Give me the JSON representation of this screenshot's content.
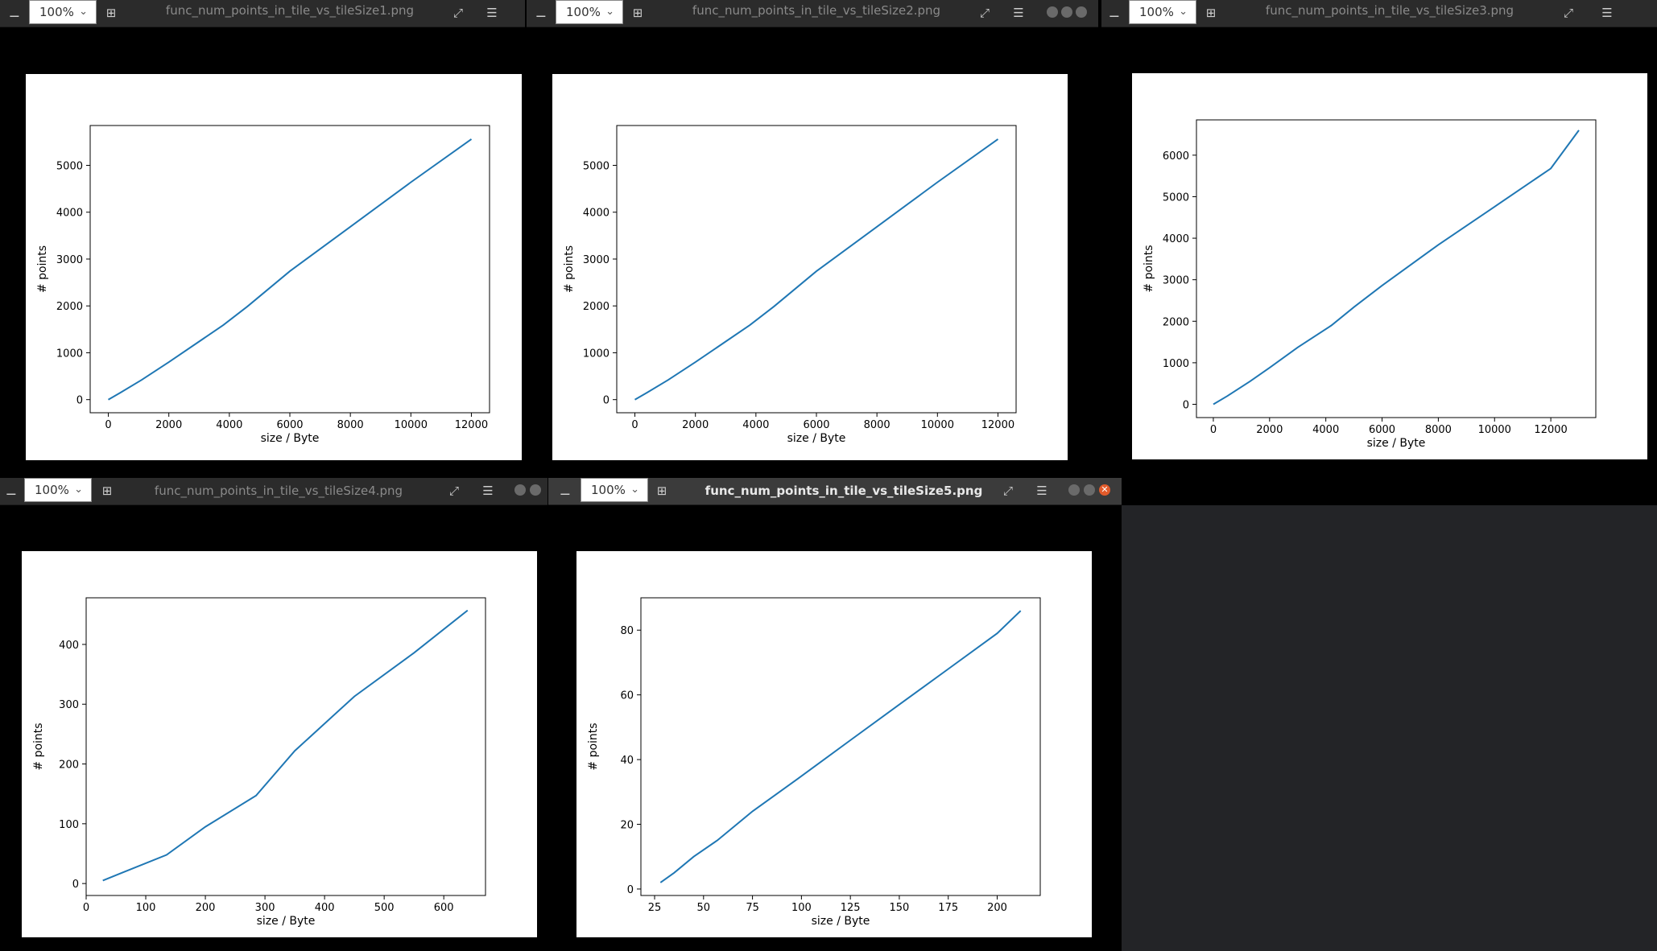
{
  "zoom_level": "100%",
  "xlabel": "size / Byte",
  "ylabel": "# points",
  "icons": {
    "minus": "minus-icon",
    "plus": "plus-icon",
    "expand": "expand-icon",
    "menu": "hamburger-menu-icon",
    "chevron": "chevron-down-icon",
    "close": "close-icon"
  },
  "colors": {
    "line": "#1f77b4",
    "titlebar": "#2b2b2b",
    "titlebar_active": "#3b3b3b"
  },
  "windows": [
    {
      "title": "func_num_points_in_tile_vs_tileSize1.png",
      "chart_data": {
        "type": "line",
        "xlabel": "size / Byte",
        "ylabel": "# points",
        "xlim": [
          -600,
          12600
        ],
        "ylim": [
          -280,
          5850
        ],
        "xticks": [
          0,
          2000,
          4000,
          6000,
          8000,
          10000,
          12000
        ],
        "yticks": [
          0,
          1000,
          2000,
          3000,
          4000,
          5000
        ],
        "x": [
          0,
          400,
          1100,
          2000,
          3000,
          3800,
          4600,
          6000,
          8000,
          10000,
          12000
        ],
        "y": [
          0,
          150,
          420,
          800,
          1240,
          1590,
          1990,
          2740,
          3690,
          4640,
          5560
        ]
      }
    },
    {
      "title": "func_num_points_in_tile_vs_tileSize2.png",
      "chart_data": {
        "type": "line",
        "xlabel": "size / Byte",
        "ylabel": "# points",
        "xlim": [
          -600,
          12600
        ],
        "ylim": [
          -280,
          5850
        ],
        "xticks": [
          0,
          2000,
          4000,
          6000,
          8000,
          10000,
          12000
        ],
        "yticks": [
          0,
          1000,
          2000,
          3000,
          4000,
          5000
        ],
        "x": [
          0,
          400,
          1100,
          2000,
          3000,
          3800,
          4600,
          6000,
          8000,
          10000,
          12000
        ],
        "y": [
          0,
          150,
          420,
          800,
          1240,
          1590,
          1990,
          2740,
          3690,
          4640,
          5560
        ]
      }
    },
    {
      "title": "func_num_points_in_tile_vs_tileSize3.png",
      "chart_data": {
        "type": "line",
        "xlabel": "size / Byte",
        "ylabel": "# points",
        "xlim": [
          -600,
          13600
        ],
        "ylim": [
          -320,
          6850
        ],
        "xticks": [
          0,
          2000,
          4000,
          6000,
          8000,
          10000,
          12000
        ],
        "yticks": [
          0,
          1000,
          2000,
          3000,
          4000,
          5000,
          6000
        ],
        "x": [
          0,
          500,
          1300,
          2000,
          3000,
          4200,
          5000,
          6000,
          8000,
          10000,
          12000,
          13000
        ],
        "y": [
          0,
          200,
          550,
          880,
          1370,
          1900,
          2340,
          2860,
          3840,
          4760,
          5680,
          6600
        ]
      }
    },
    {
      "title": "func_num_points_in_tile_vs_tileSize4.png",
      "chart_data": {
        "type": "line",
        "xlabel": "size / Byte",
        "ylabel": "# points",
        "xlim": [
          0,
          670
        ],
        "ylim": [
          -20,
          478
        ],
        "xticks": [
          0,
          100,
          200,
          300,
          400,
          500,
          600
        ],
        "yticks": [
          0,
          100,
          200,
          300,
          400
        ],
        "x": [
          28,
          60,
          135,
          200,
          285,
          350,
          450,
          550,
          640
        ],
        "y": [
          5,
          18,
          48,
          95,
          147,
          222,
          313,
          386,
          457
        ]
      }
    },
    {
      "title": "func_num_points_in_tile_vs_tileSize5.png",
      "chart_data": {
        "type": "line",
        "xlabel": "size / Byte",
        "ylabel": "# points",
        "xlim": [
          18,
          222
        ],
        "ylim": [
          -2,
          90
        ],
        "xticks": [
          25,
          50,
          75,
          100,
          125,
          150,
          175,
          200
        ],
        "yticks": [
          0,
          20,
          40,
          60,
          80
        ],
        "x": [
          28,
          35,
          45,
          57,
          75,
          98,
          125,
          150,
          175,
          200,
          212
        ],
        "y": [
          2,
          5,
          10,
          15,
          24,
          34,
          46,
          57,
          68,
          79,
          86
        ]
      }
    }
  ]
}
